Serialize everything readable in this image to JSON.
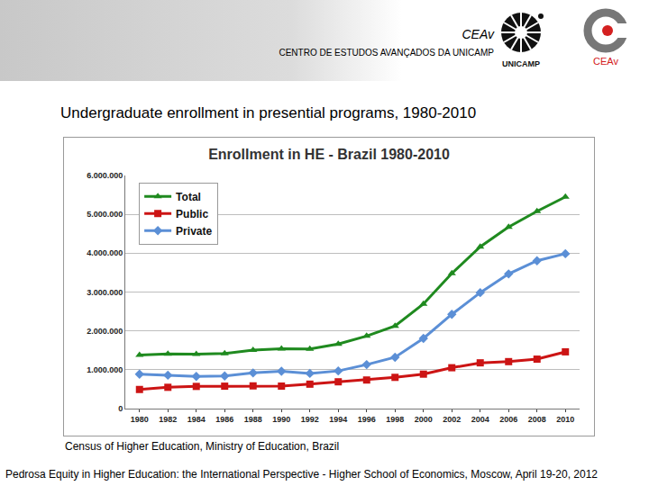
{
  "header": {
    "title": "CEAv",
    "subtitle": "CENTRO DE ESTUDOS AVANÇADOS DA UNICAMP",
    "logos": [
      "UNICAMP",
      "CEAv"
    ]
  },
  "slide_title": "Undergraduate enrollment in presential programs, 1980-2010",
  "chart_data": {
    "type": "line",
    "title": "Enrollment in HE - Brazil 1980-2010",
    "categories": [
      "1980",
      "1982",
      "1984",
      "1986",
      "1988",
      "1990",
      "1992",
      "1994",
      "1996",
      "1998",
      "2000",
      "2002",
      "2004",
      "2006",
      "2008",
      "2010"
    ],
    "series": [
      {
        "name": "Total",
        "color": "#1f8a1f",
        "marker": "triangle-up",
        "line_style": "solid",
        "values": [
          1377000,
          1408000,
          1399000,
          1418000,
          1503000,
          1540000,
          1535000,
          1661000,
          1868000,
          2126000,
          2695000,
          3480000,
          4164000,
          4676000,
          5080000,
          5449000
        ]
      },
      {
        "name": "Public",
        "color": "#cc1414",
        "marker": "square",
        "line_style": "solid",
        "values": [
          492000,
          548000,
          571000,
          577000,
          585000,
          579000,
          629000,
          690000,
          736000,
          804000,
          887000,
          1052000,
          1178000,
          1209000,
          1273000,
          1461000
        ]
      },
      {
        "name": "Private",
        "color": "#5b8fd6",
        "marker": "diamond",
        "line_style": "solid",
        "values": [
          885000,
          860000,
          828000,
          841000,
          918000,
          961000,
          906000,
          970000,
          1133000,
          1321000,
          1807000,
          2428000,
          2985000,
          3467000,
          3806000,
          3987000
        ]
      }
    ],
    "ylim": [
      0,
      6000000
    ],
    "yticks": [
      0,
      {
        "value": 1000000,
        "label": "1.000.000"
      },
      {
        "value": 2000000,
        "label": "2.000.000"
      },
      {
        "value": 3000000,
        "label": "3.000.000"
      },
      {
        "value": 4000000,
        "label": "4.000.000"
      },
      {
        "value": 5000000,
        "label": "5.000.000"
      },
      {
        "value": 6000000,
        "label": "6.000.000"
      }
    ],
    "grid": true,
    "legend": "upper left"
  },
  "source": "Census of Higher Education, Ministry of Education, Brazil",
  "footer": "Pedrosa Equity in Higher Education: the International Perspective - Higher School of Economics, Moscow, April 19-20, 2012"
}
